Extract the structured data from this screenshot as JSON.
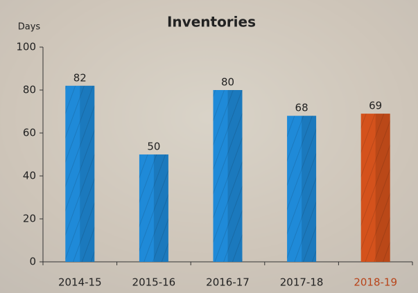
{
  "chart_data": {
    "type": "bar",
    "title": "Inventories",
    "y_label": "Days",
    "categories": [
      "2014-15",
      "2015-16",
      "2016-17",
      "2017-18",
      "2018-19"
    ],
    "values": [
      82,
      50,
      80,
      68,
      69
    ],
    "colors": [
      "#1f8ad8",
      "#1f8ad8",
      "#1f8ad8",
      "#1f8ad8",
      "#d4521c"
    ],
    "label_colors": [
      "#222222",
      "#222222",
      "#222222",
      "#222222",
      "#b8441a"
    ],
    "ylim": [
      0,
      100
    ],
    "yticks": [
      0,
      20,
      40,
      60,
      80,
      100
    ]
  }
}
